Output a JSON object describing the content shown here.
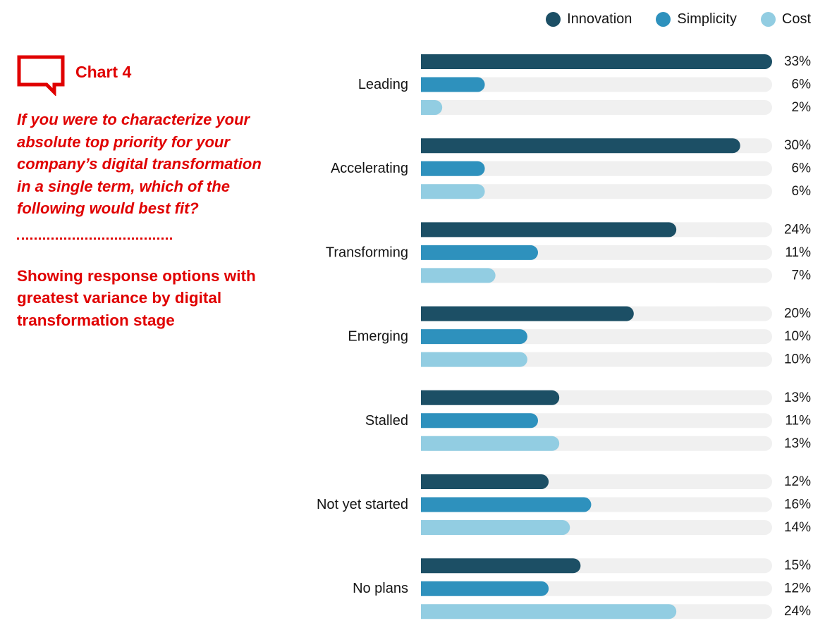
{
  "header": {
    "chart_number": "Chart 4",
    "question": " If you were to characterize your\nabsolute top priority for your\ncompany’s digital transformation\nin a single term, which of the\nfollowing would best fit?",
    "subtitle": "Showing response options with\ngreatest variance by digital\ntransformation stage"
  },
  "colors": {
    "accent": "#e00000",
    "innovation": "#1c4f65",
    "simplicity": "#2e91bd",
    "cost": "#92cde2",
    "track": "#f0f0f0"
  },
  "icons": {
    "badge": "speech-bubble-icon"
  },
  "chart_data": {
    "type": "bar",
    "orientation": "horizontal",
    "title": "",
    "xlabel": "",
    "ylabel": "",
    "xlim": [
      0,
      33
    ],
    "grid": false,
    "legend_placement": "top-right",
    "value_suffix": "%",
    "categories": [
      "Leading",
      "Accelerating",
      "Transforming",
      "Emerging",
      "Stalled",
      "Not yet started",
      "No plans"
    ],
    "series": [
      {
        "name": "Innovation",
        "color": "#1c4f65",
        "values": [
          33,
          30,
          24,
          20,
          13,
          12,
          15
        ]
      },
      {
        "name": "Simplicity",
        "color": "#2e91bd",
        "values": [
          6,
          6,
          11,
          10,
          11,
          16,
          12
        ]
      },
      {
        "name": "Cost",
        "color": "#92cde2",
        "values": [
          2,
          6,
          7,
          10,
          13,
          14,
          24
        ]
      }
    ]
  }
}
